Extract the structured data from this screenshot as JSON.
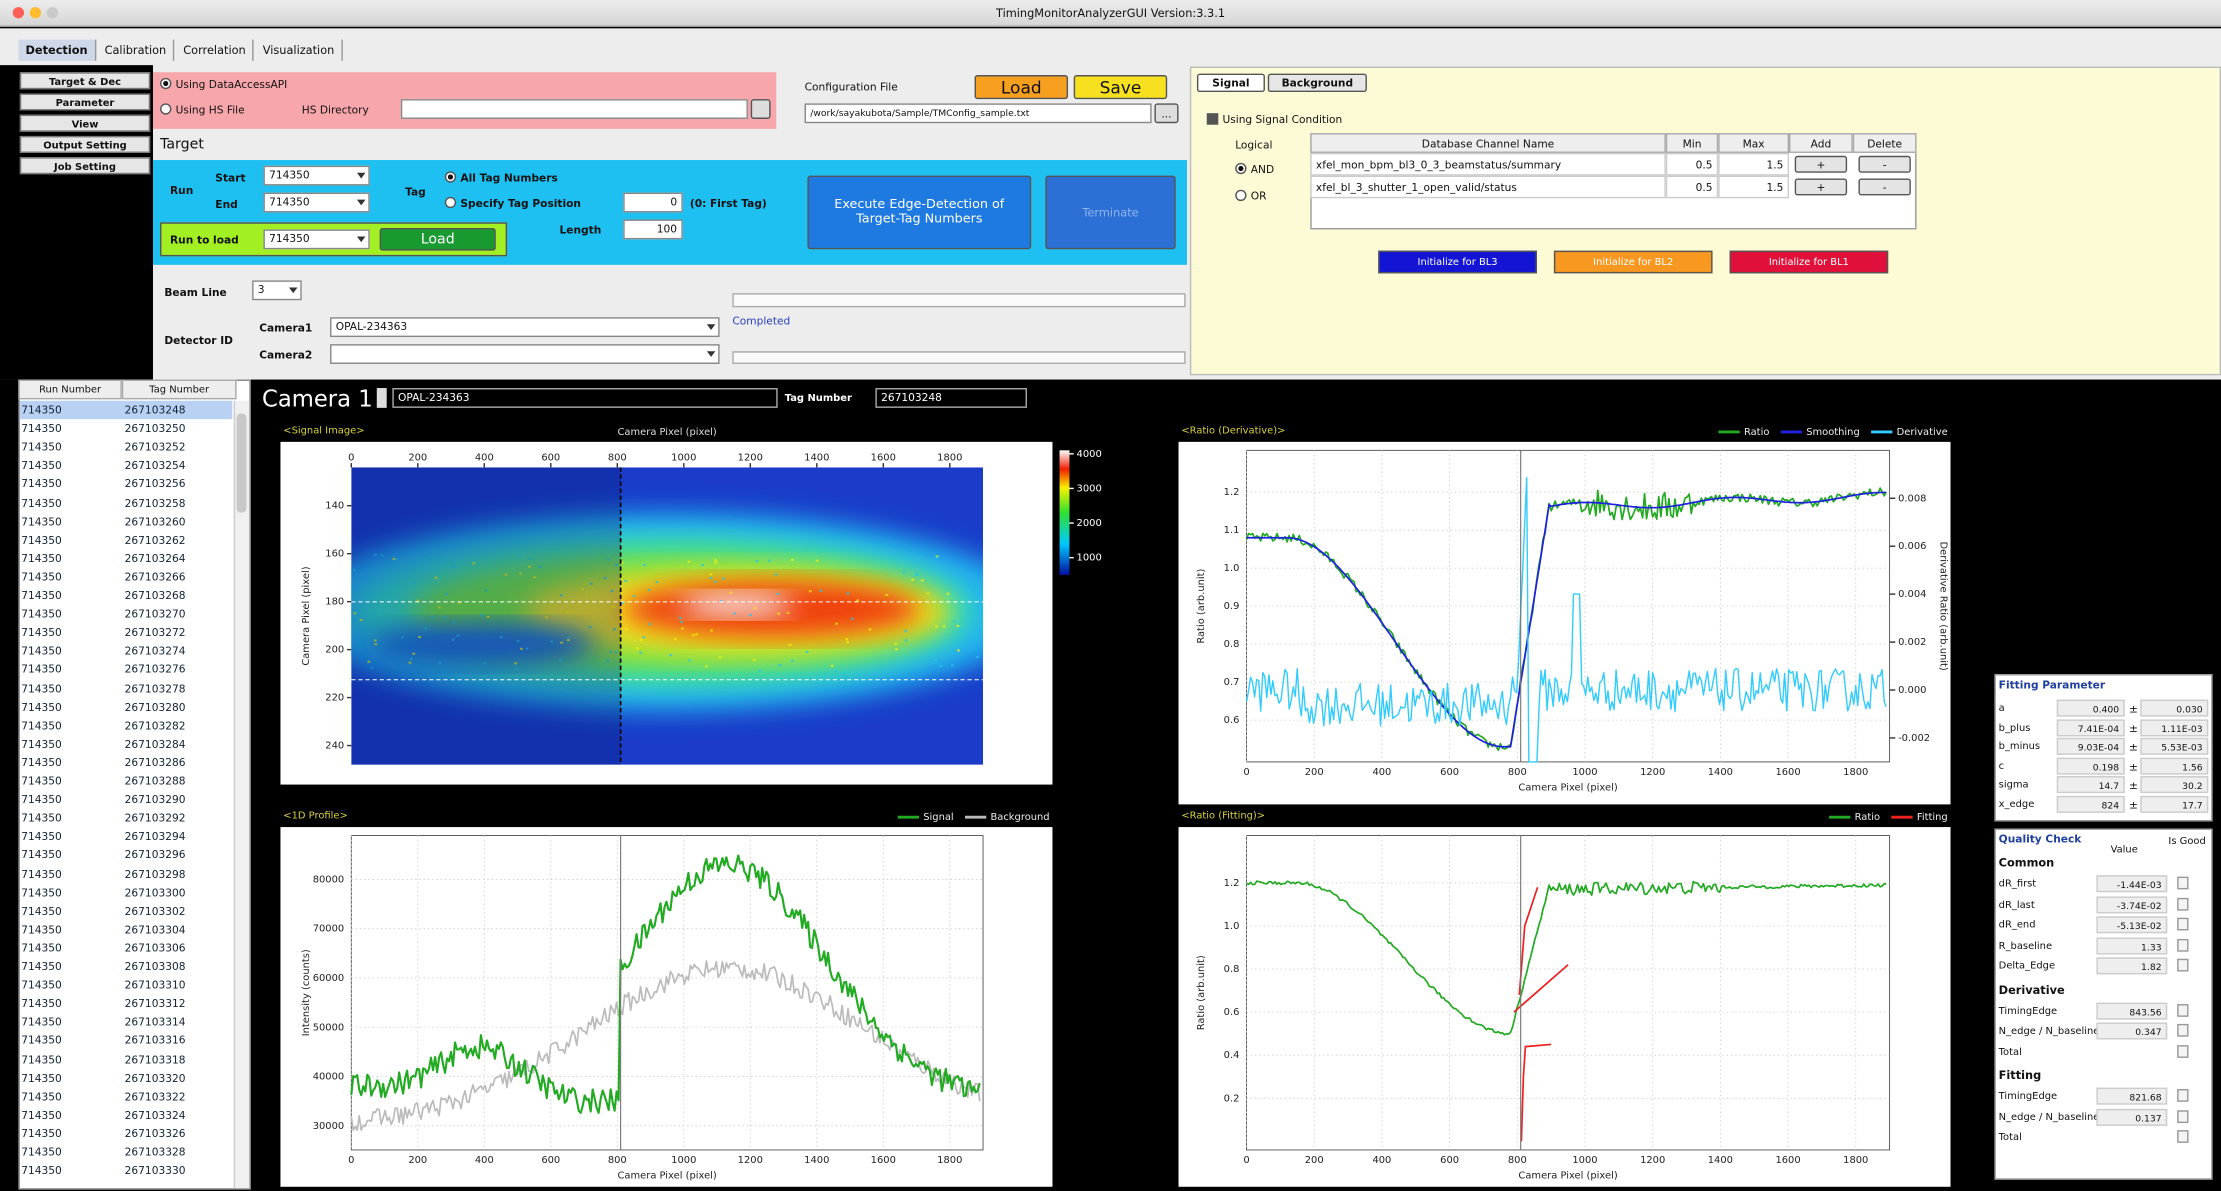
{
  "window": {
    "title": "TimingMonitorAnalyzerGUI Version:3.3.1"
  },
  "tabs": [
    "Detection",
    "Calibration",
    "Correlation",
    "Visualization"
  ],
  "nav": [
    "Target & Dec",
    "Parameter",
    "View",
    "Output Setting",
    "Job Setting"
  ],
  "source": {
    "api": "Using DataAccessAPI",
    "hs_file": "Using HS File",
    "hs_dir": "HS Directory"
  },
  "config": {
    "label": "Configuration File",
    "load": "Load",
    "save": "Save",
    "path": "/work/sayakubota/Sample/TMConfig_sample.txt",
    "browse": "..."
  },
  "target": {
    "title": "Target",
    "run_label": "Run",
    "start_label": "Start",
    "start": "714350",
    "end_label": "End",
    "end": "714350",
    "tag_label": "Tag",
    "all_tags": "All Tag Numbers",
    "specify": "Specify Tag Position",
    "position": "0",
    "first_tag": "(0: First Tag)",
    "length_label": "Length",
    "length": "100",
    "execute": "Execute Edge-Detection of Target-Tag Numbers",
    "terminate": "Terminate",
    "run_to_load_label": "Run to load",
    "run_to_load": "714350",
    "load": "Load"
  },
  "beam_line": {
    "label": "Beam Line",
    "value": "3"
  },
  "detector": {
    "label": "Detector ID",
    "camera1_label": "Camera1",
    "camera1": "OPAL-234363",
    "camera2_label": "Camera2",
    "status": "Completed"
  },
  "condition": {
    "tabs": [
      "Signal",
      "Background"
    ],
    "use": "Using Signal Condition",
    "logical": "Logical",
    "and": "AND",
    "or": "OR",
    "headers": [
      "Database Channel Name",
      "Min",
      "Max",
      "Add",
      "Delete"
    ],
    "rows": [
      [
        "xfel_mon_bpm_bl3_0_3_beamstatus/summary",
        "0.5",
        "1.5",
        "+",
        "-"
      ],
      [
        "xfel_bl_3_shutter_1_open_valid/status",
        "0.5",
        "1.5",
        "+",
        "-"
      ]
    ],
    "buttons": [
      "Initialize for BL3",
      "Initialize for BL2",
      "Initialize for BL1"
    ]
  },
  "run_list": {
    "headers": [
      "Run Number",
      "Tag Number"
    ],
    "rows": [
      [
        "714350",
        "267103248"
      ],
      [
        "714350",
        "267103250"
      ],
      [
        "714350",
        "267103252"
      ],
      [
        "714350",
        "267103254"
      ],
      [
        "714350",
        "267103256"
      ],
      [
        "714350",
        "267103258"
      ],
      [
        "714350",
        "267103260"
      ],
      [
        "714350",
        "267103262"
      ],
      [
        "714350",
        "267103264"
      ],
      [
        "714350",
        "267103266"
      ],
      [
        "714350",
        "267103268"
      ],
      [
        "714350",
        "267103270"
      ],
      [
        "714350",
        "267103272"
      ],
      [
        "714350",
        "267103274"
      ],
      [
        "714350",
        "267103276"
      ],
      [
        "714350",
        "267103278"
      ],
      [
        "714350",
        "267103280"
      ],
      [
        "714350",
        "267103282"
      ],
      [
        "714350",
        "267103284"
      ],
      [
        "714350",
        "267103286"
      ],
      [
        "714350",
        "267103288"
      ],
      [
        "714350",
        "267103290"
      ],
      [
        "714350",
        "267103292"
      ],
      [
        "714350",
        "267103294"
      ],
      [
        "714350",
        "267103296"
      ],
      [
        "714350",
        "267103298"
      ],
      [
        "714350",
        "267103300"
      ],
      [
        "714350",
        "267103302"
      ],
      [
        "714350",
        "267103304"
      ],
      [
        "714350",
        "267103306"
      ],
      [
        "714350",
        "267103308"
      ],
      [
        "714350",
        "267103310"
      ],
      [
        "714350",
        "267103312"
      ],
      [
        "714350",
        "267103314"
      ],
      [
        "714350",
        "267103316"
      ],
      [
        "714350",
        "267103318"
      ],
      [
        "714350",
        "267103320"
      ],
      [
        "714350",
        "267103322"
      ],
      [
        "714350",
        "267103324"
      ],
      [
        "714350",
        "267103326"
      ],
      [
        "714350",
        "267103328"
      ],
      [
        "714350",
        "267103330"
      ]
    ]
  },
  "camera": {
    "label": "Camera 1",
    "id": "OPAL-234363",
    "tag_label": "Tag Number",
    "tag": "267103248"
  },
  "plots": [
    {
      "title": "<Signal Image>",
      "xlabel": "Camera Pixel (pixel)",
      "ylabel": "Camera Pixel (pixel)",
      "xlim": [
        0,
        1900
      ],
      "xticks": [
        0,
        200,
        400,
        600,
        800,
        1000,
        1200,
        1400,
        1600,
        1800
      ],
      "ylim": [
        124,
        248
      ],
      "yticks": [
        140,
        160,
        180,
        200,
        220,
        240
      ],
      "clim": [
        500,
        4100
      ],
      "cticks": [
        1000,
        2000,
        3000,
        4000
      ]
    },
    {
      "title": "<Ratio (Derivative)>",
      "xlabel": "Camera Pixel (pixel)",
      "ylabel": "Ratio (arb.unit)",
      "y2label": "Derivative Ratio (arb.unit)",
      "legend": [
        {
          "name": "Ratio",
          "color": "#22aa22"
        },
        {
          "name": "Smoothing",
          "color": "#2020e0"
        },
        {
          "name": "Derivative",
          "color": "#33ccff"
        }
      ],
      "xlim": [
        0,
        1900
      ],
      "xticks": [
        0,
        200,
        400,
        600,
        800,
        1000,
        1200,
        1400,
        1600,
        1800
      ],
      "ylim": [
        0.49,
        1.31
      ],
      "yticks": [
        0.6,
        0.7,
        0.8,
        0.9,
        {
          "value": 1,
          "label": "1.0"
        },
        1.1,
        1.2
      ],
      "y2lim": [
        -0.003,
        0.01
      ],
      "y2ticks": [
        -0.002,
        {
          "value": 0,
          "label": "0.000"
        },
        0.002,
        0.004,
        0.006,
        0.008
      ]
    },
    {
      "title": "<1D Profile>",
      "xlabel": "Camera Pixel (pixel)",
      "ylabel": "Intensity (counts)",
      "legend": [
        {
          "name": "Signal",
          "color": "#22aa22"
        },
        {
          "name": "Background",
          "color": "#bbbbbb"
        }
      ],
      "xlim": [
        0,
        1900
      ],
      "xticks": [
        0,
        200,
        400,
        600,
        800,
        1000,
        1200,
        1400,
        1600,
        1800
      ],
      "ylim": [
        25100,
        88900
      ],
      "yticks": [
        30000,
        40000,
        50000,
        60000,
        70000,
        80000
      ]
    },
    {
      "title": "<Ratio (Fitting)>",
      "xlabel": "Camera Pixel (pixel)",
      "ylabel": "Ratio (arb.unit)",
      "legend": [
        {
          "name": "Ratio",
          "color": "#22aa22"
        },
        {
          "name": "Fitting",
          "color": "#ee2020"
        }
      ],
      "xlim": [
        0,
        1900
      ],
      "xticks": [
        0,
        200,
        400,
        600,
        800,
        1000,
        1200,
        1400,
        1600,
        1800
      ],
      "ylim": [
        -0.04,
        1.42
      ],
      "yticks": [
        0.2,
        0.4,
        0.6,
        0.8,
        {
          "value": 1,
          "label": "1.0"
        },
        1.2
      ]
    }
  ],
  "fitting": {
    "title": "Fitting Parameter",
    "rows": [
      {
        "name": "a",
        "value": "0.400",
        "sign": "±",
        "error": "0.030"
      },
      {
        "name": "b_plus",
        "value": "7.41E-04",
        "sign": "±",
        "error": "1.11E-03"
      },
      {
        "name": "b_minus",
        "value": "9.03E-04",
        "sign": "±",
        "error": "5.53E-03"
      },
      {
        "name": "c",
        "value": "0.198",
        "sign": "±",
        "error": "1.56"
      },
      {
        "name": "sigma",
        "value": "14.7",
        "sign": "±",
        "error": "30.2"
      },
      {
        "name": "x_edge",
        "value": "824",
        "sign": "±",
        "error": "17.7"
      }
    ]
  },
  "quality": {
    "title": "Quality Check",
    "value": "Value",
    "good": "Is Good",
    "sections": [
      {
        "title": "Common",
        "rows": [
          {
            "name": "dR_first",
            "value": "-1.44E-03"
          },
          {
            "name": "dR_last",
            "value": "-3.74E-02"
          },
          {
            "name": "dR_end",
            "value": "-5.13E-02"
          },
          {
            "name": "R_baseline",
            "value": "1.33"
          },
          {
            "name": "Delta_Edge",
            "value": "1.82"
          }
        ]
      },
      {
        "title": "Derivative",
        "rows": [
          {
            "name": "TimingEdge",
            "value": "843.56"
          },
          {
            "name": "N_edge / N_baseline",
            "value": "0.347"
          },
          {
            "name": "Total"
          }
        ]
      },
      {
        "title": "Fitting",
        "rows": [
          {
            "name": "TimingEdge",
            "value": "821.68"
          },
          {
            "name": "N_edge / N_baseline",
            "value": "0.137"
          },
          {
            "name": "Total"
          }
        ]
      }
    ]
  }
}
